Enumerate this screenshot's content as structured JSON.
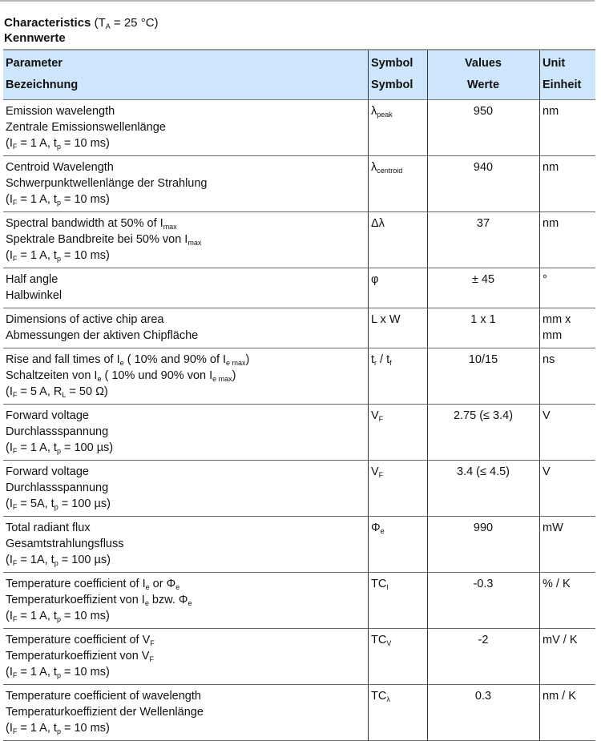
{
  "heading": {
    "title_bold": "Characteristics",
    "title_cond": [
      " (T",
      {
        "sub": "A"
      },
      " = 25 °C)"
    ],
    "subtitle": "Kennwerte"
  },
  "colors": {
    "header_bg": "#cde6fb"
  },
  "table": {
    "headers": [
      [
        "Parameter",
        "Bezeichnung"
      ],
      [
        "Symbol",
        "Symbol"
      ],
      [
        "Values",
        "Werte"
      ],
      [
        "Unit",
        "Einheit"
      ]
    ],
    "rows": [
      {
        "param": [
          [
            "Emission wavelength"
          ],
          [
            "Zentrale Emissionswellenlänge"
          ],
          [
            "(I",
            {
              "sub": "F"
            },
            " = 1 A, t",
            {
              "sub": "p"
            },
            " = 10 ms)"
          ]
        ],
        "symbol": [
          "λ",
          {
            "sub": "peak"
          }
        ],
        "value": "950",
        "unit": [
          "nm"
        ]
      },
      {
        "param": [
          [
            "Centroid Wavelength"
          ],
          [
            "Schwerpunktwellenlänge der Strahlung"
          ],
          [
            "(I",
            {
              "sub": "F"
            },
            " = 1 A, t",
            {
              "sub": "p"
            },
            " = 10 ms)"
          ]
        ],
        "symbol": [
          "λ",
          {
            "sub": "centroid"
          }
        ],
        "value": "940",
        "unit": [
          "nm"
        ]
      },
      {
        "param": [
          [
            "Spectral bandwidth at 50% of I",
            {
              "sub": "max"
            }
          ],
          [
            "Spektrale Bandbreite bei 50% von I",
            {
              "sub": "max"
            }
          ],
          [
            "(I",
            {
              "sub": "F"
            },
            " = 1 A, t",
            {
              "sub": "p"
            },
            " = 10 ms)"
          ]
        ],
        "symbol": [
          "Δλ"
        ],
        "value": "37",
        "unit": [
          "nm"
        ]
      },
      {
        "param": [
          [
            "Half angle"
          ],
          [
            "Halbwinkel"
          ]
        ],
        "symbol": [
          "φ"
        ],
        "value": "± 45",
        "unit": [
          "°"
        ]
      },
      {
        "param": [
          [
            "Dimensions of active chip area"
          ],
          [
            "Abmessungen der aktiven Chipfläche"
          ]
        ],
        "symbol": [
          "L x W"
        ],
        "value": "1 x 1",
        "unit": [
          "mm x",
          "mm"
        ]
      },
      {
        "param": [
          [
            "Rise and fall times of I",
            {
              "sub": "e"
            },
            " ( 10% and 90% of I",
            {
              "sub": "e max"
            },
            ")"
          ],
          [
            "Schaltzeiten von I",
            {
              "sub": "e"
            },
            " ( 10% und 90% von I",
            {
              "sub": "e max"
            },
            ")"
          ],
          [
            "(I",
            {
              "sub": "F"
            },
            " = 5 A, R",
            {
              "sub": "L"
            },
            " = 50 Ω)"
          ]
        ],
        "symbol": [
          "t",
          {
            "sub": "r"
          },
          " / t",
          {
            "sub": "f"
          }
        ],
        "value": "10/15",
        "unit": [
          "ns"
        ]
      },
      {
        "param": [
          [
            "Forward voltage"
          ],
          [
            "Durchlassspannung"
          ],
          [
            "(I",
            {
              "sub": "F"
            },
            " = 1 A, t",
            {
              "sub": "p"
            },
            " = 100 µs)"
          ]
        ],
        "symbol": [
          "V",
          {
            "sub": "F"
          }
        ],
        "value": "2.75 (≤ 3.4)",
        "unit": [
          "V"
        ]
      },
      {
        "param": [
          [
            "Forward voltage"
          ],
          [
            "Durchlassspannung"
          ],
          [
            "(I",
            {
              "sub": "F"
            },
            " = 5A, t",
            {
              "sub": "p"
            },
            " = 100 µs)"
          ]
        ],
        "symbol": [
          "V",
          {
            "sub": "F"
          }
        ],
        "value": "3.4 (≤ 4.5)",
        "unit": [
          "V"
        ]
      },
      {
        "param": [
          [
            "Total radiant flux"
          ],
          [
            "Gesamtstrahlungsfluss"
          ],
          [
            "(I",
            {
              "sub": "F"
            },
            " = 1A, t",
            {
              "sub": "p"
            },
            " = 100 µs)"
          ]
        ],
        "symbol": [
          "Φ",
          {
            "sub": "e"
          }
        ],
        "value": "990",
        "unit": [
          "mW"
        ]
      },
      {
        "param": [
          [
            "Temperature coefficient of I",
            {
              "sub": "e"
            },
            " or Φ",
            {
              "sub": "e"
            }
          ],
          [
            "Temperaturkoeffizient von I",
            {
              "sub": "e"
            },
            " bzw. Φ",
            {
              "sub": "e"
            }
          ],
          [
            "(I",
            {
              "sub": "F"
            },
            " = 1 A, t",
            {
              "sub": "p"
            },
            " = 10 ms)"
          ]
        ],
        "symbol": [
          "TC",
          {
            "sub": "I"
          }
        ],
        "value": "-0.3",
        "unit": [
          "% / K"
        ]
      },
      {
        "param": [
          [
            "Temperature coefficient of V",
            {
              "sub": "F"
            }
          ],
          [
            "Temperaturkoeffizient von V",
            {
              "sub": "F"
            }
          ],
          [
            "(I",
            {
              "sub": "F"
            },
            " = 1 A, t",
            {
              "sub": "p"
            },
            " = 10 ms)"
          ]
        ],
        "symbol": [
          "TC",
          {
            "sub": "V"
          }
        ],
        "value": "-2",
        "unit": [
          "mV / K"
        ]
      },
      {
        "param": [
          [
            "Temperature coefficient of wavelength"
          ],
          [
            "Temperaturkoeffizient der Wellenlänge"
          ],
          [
            "(I",
            {
              "sub": "F"
            },
            " = 1 A, t",
            {
              "sub": "p"
            },
            " = 10 ms)"
          ]
        ],
        "symbol": [
          "TC",
          {
            "sub": "λ"
          }
        ],
        "value": "0.3",
        "unit": [
          "nm / K"
        ]
      }
    ]
  }
}
